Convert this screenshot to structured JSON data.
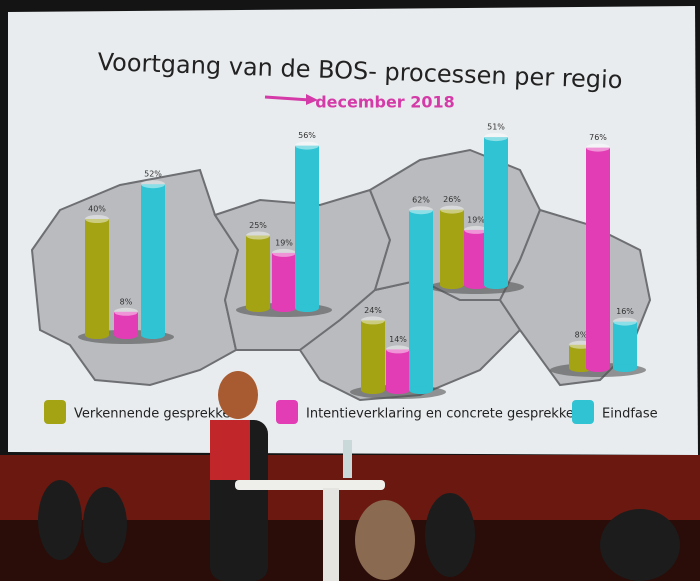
{
  "chart_data": {
    "type": "bar",
    "title": "Voortgang van de BOS- processen per regio",
    "subtitle": "december 2018",
    "categories": [
      null,
      null,
      null,
      null,
      null
    ],
    "series": [
      {
        "name": "Verkennende gesprekken",
        "color": "#a3a314",
        "values": [
          40,
          25,
          24,
          26,
          8
        ],
        "value_labels": [
          "40%",
          "25%",
          "24%",
          "26%",
          "8%"
        ]
      },
      {
        "name": "Intentieverklaring en concrete gesprekken",
        "color": "#e23db4",
        "values": [
          8,
          19,
          14,
          19,
          76
        ],
        "value_labels": [
          "8%",
          "19%",
          "14%",
          "19%",
          "76%"
        ]
      },
      {
        "name": "Eindfase",
        "color": "#2fc3d3",
        "values": [
          52,
          56,
          62,
          51,
          16
        ],
        "value_labels": [
          "52%",
          "56%",
          "62%",
          "51%",
          "16%"
        ]
      }
    ]
  }
}
